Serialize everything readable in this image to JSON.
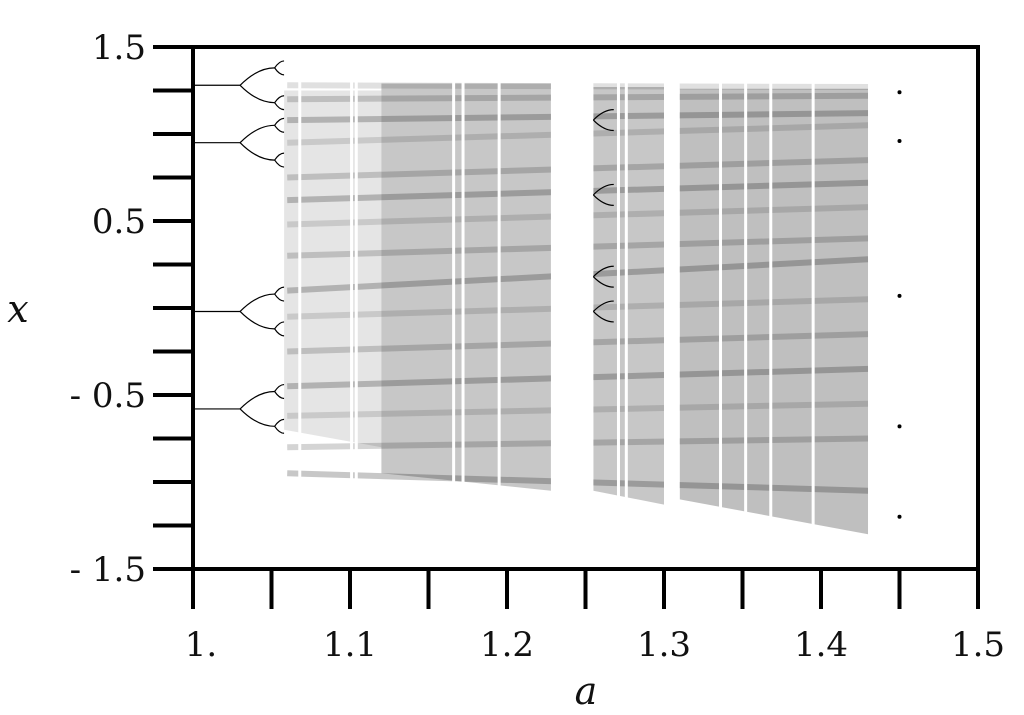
{
  "chart_data": {
    "type": "scatter",
    "xlabel": "a",
    "ylabel": "x",
    "xlim": [
      1.0,
      1.5
    ],
    "ylim": [
      -1.5,
      1.5
    ],
    "x_tick_values": [
      1.0,
      1.1,
      1.2,
      1.3,
      1.4,
      1.5
    ],
    "x_tick_labels": [
      "1.",
      "1.1",
      "1.2",
      "1.3",
      "1.4",
      "1.5"
    ],
    "y_tick_values": [
      1.5,
      0.5,
      -0.5,
      -1.5
    ],
    "y_tick_labels": [
      "1.5",
      "0.5",
      "- 0.5",
      "- 1.5"
    ],
    "grid": false,
    "legend": "none",
    "point_color": "#000000",
    "series": [
      {
        "values": [
          {
            "a_range": [
              1.0,
              1.43
            ],
            "x_start": 1.28,
            "x_end": 1.26
          },
          {
            "a_range": [
              1.0,
              1.43
            ],
            "x_start": 0.95,
            "x_end": 1.1
          },
          {
            "a_range": [
              1.0,
              1.43
            ],
            "x_start": 0.62,
            "x_end": 0.75
          },
          {
            "a_range": [
              1.0,
              1.43
            ],
            "x_start": -0.02,
            "x_end": 0.3
          },
          {
            "a_range": [
              1.0,
              1.43
            ],
            "x_start": -0.58,
            "x_end": -0.25
          },
          {
            "a_range": [
              1.0,
              1.43
            ],
            "x_start": -1.05,
            "x_end": -1.23
          }
        ]
      }
    ]
  }
}
